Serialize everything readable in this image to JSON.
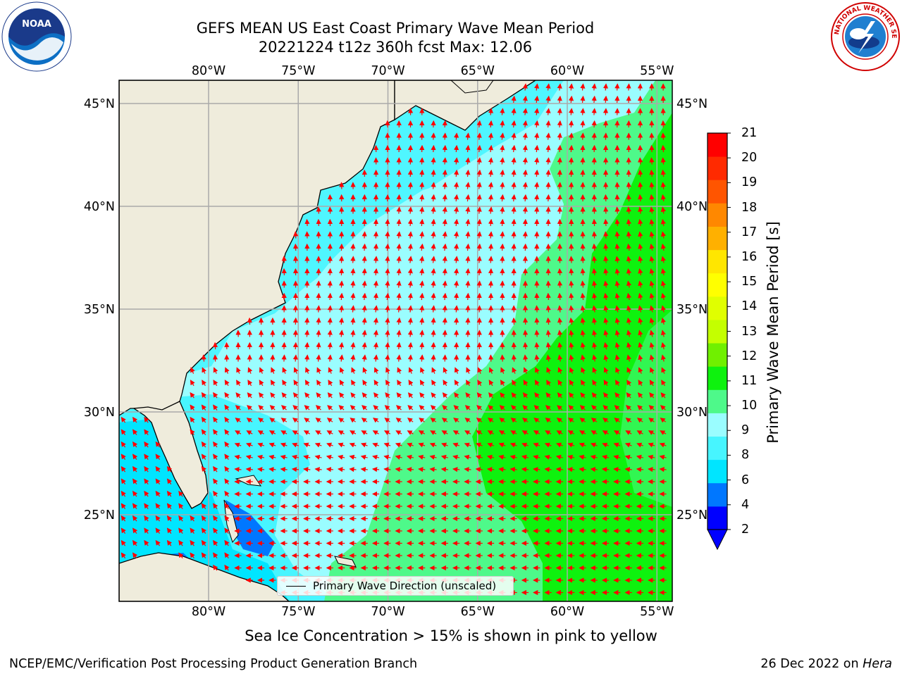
{
  "header": {
    "title_line1": "GEFS MEAN US East Coast Primary Wave Mean Period",
    "title_line2": "20221224 t12z 360h fcst   Max: 12.06"
  },
  "logos": {
    "left": "NOAA",
    "right_ring_text": "NATIONAL WEATHER SERVICE"
  },
  "map": {
    "lon_labels": [
      "80°W",
      "75°W",
      "70°W",
      "65°W",
      "60°W",
      "55°W"
    ],
    "lat_labels": [
      "45°N",
      "40°N",
      "35°N",
      "30°N",
      "25°N"
    ],
    "lon_range": [
      -85,
      -54.2
    ],
    "lat_range": [
      20.5,
      46
    ],
    "land_color": "#efecdc",
    "vector_color": "#ff0000",
    "grid": true
  },
  "legend": {
    "label": "Primary Wave Direction (unscaled)"
  },
  "colorbar": {
    "label": "Primary Wave Mean Period [s]",
    "ticks": [
      "21",
      "20",
      "19",
      "18",
      "17",
      "16",
      "15",
      "14",
      "13",
      "12",
      "11",
      "10",
      "9",
      "8",
      "6",
      "4",
      "2"
    ],
    "colors": [
      "#0000ff",
      "#0077ff",
      "#00e5ff",
      "#47f5ff",
      "#9afdff",
      "#4ef98a",
      "#0ef20e",
      "#70f000",
      "#c4ff00",
      "#e0ff00",
      "#ffff00",
      "#ffe600",
      "#ffb000",
      "#ff8800",
      "#ff5500",
      "#ff2a00",
      "#ff0000"
    ]
  },
  "subtitle": "Sea Ice Concentration > 15% is shown in pink to yellow",
  "footer": {
    "left": "NCEP/EMC/Verification Post Processing Product Generation Branch",
    "right_date": "26 Dec 2022 on",
    "right_machine": "Hera"
  }
}
